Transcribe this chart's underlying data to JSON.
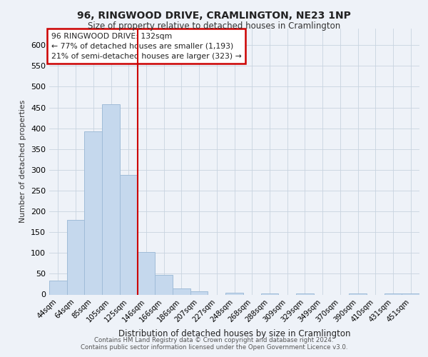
{
  "title_line1": "96, RINGWOOD DRIVE, CRAMLINGTON, NE23 1NP",
  "title_line2": "Size of property relative to detached houses in Cramlington",
  "xlabel": "Distribution of detached houses by size in Cramlington",
  "ylabel": "Number of detached properties",
  "categories": [
    "44sqm",
    "64sqm",
    "85sqm",
    "105sqm",
    "125sqm",
    "146sqm",
    "166sqm",
    "186sqm",
    "207sqm",
    "227sqm",
    "248sqm",
    "268sqm",
    "288sqm",
    "309sqm",
    "329sqm",
    "349sqm",
    "370sqm",
    "390sqm",
    "410sqm",
    "431sqm",
    "451sqm"
  ],
  "values": [
    34,
    180,
    393,
    458,
    288,
    103,
    48,
    15,
    7,
    0,
    4,
    0,
    3,
    0,
    3,
    0,
    0,
    2,
    0,
    2,
    3
  ],
  "bar_color": "#c5d8ed",
  "bar_edgecolor": "#a0bcd8",
  "vline_x": 4.5,
  "vline_color": "#cc0000",
  "annotation_text": "96 RINGWOOD DRIVE: 132sqm\n← 77% of detached houses are smaller (1,193)\n21% of semi-detached houses are larger (323) →",
  "annotation_box_color": "#ffffff",
  "annotation_box_edgecolor": "#cc0000",
  "ylim": [
    0,
    640
  ],
  "yticks": [
    0,
    50,
    100,
    150,
    200,
    250,
    300,
    350,
    400,
    450,
    500,
    550,
    600
  ],
  "footer_line1": "Contains HM Land Registry data © Crown copyright and database right 2024.",
  "footer_line2": "Contains public sector information licensed under the Open Government Licence v3.0.",
  "bg_color": "#eef2f8",
  "plot_bg_color": "#eef2f8"
}
